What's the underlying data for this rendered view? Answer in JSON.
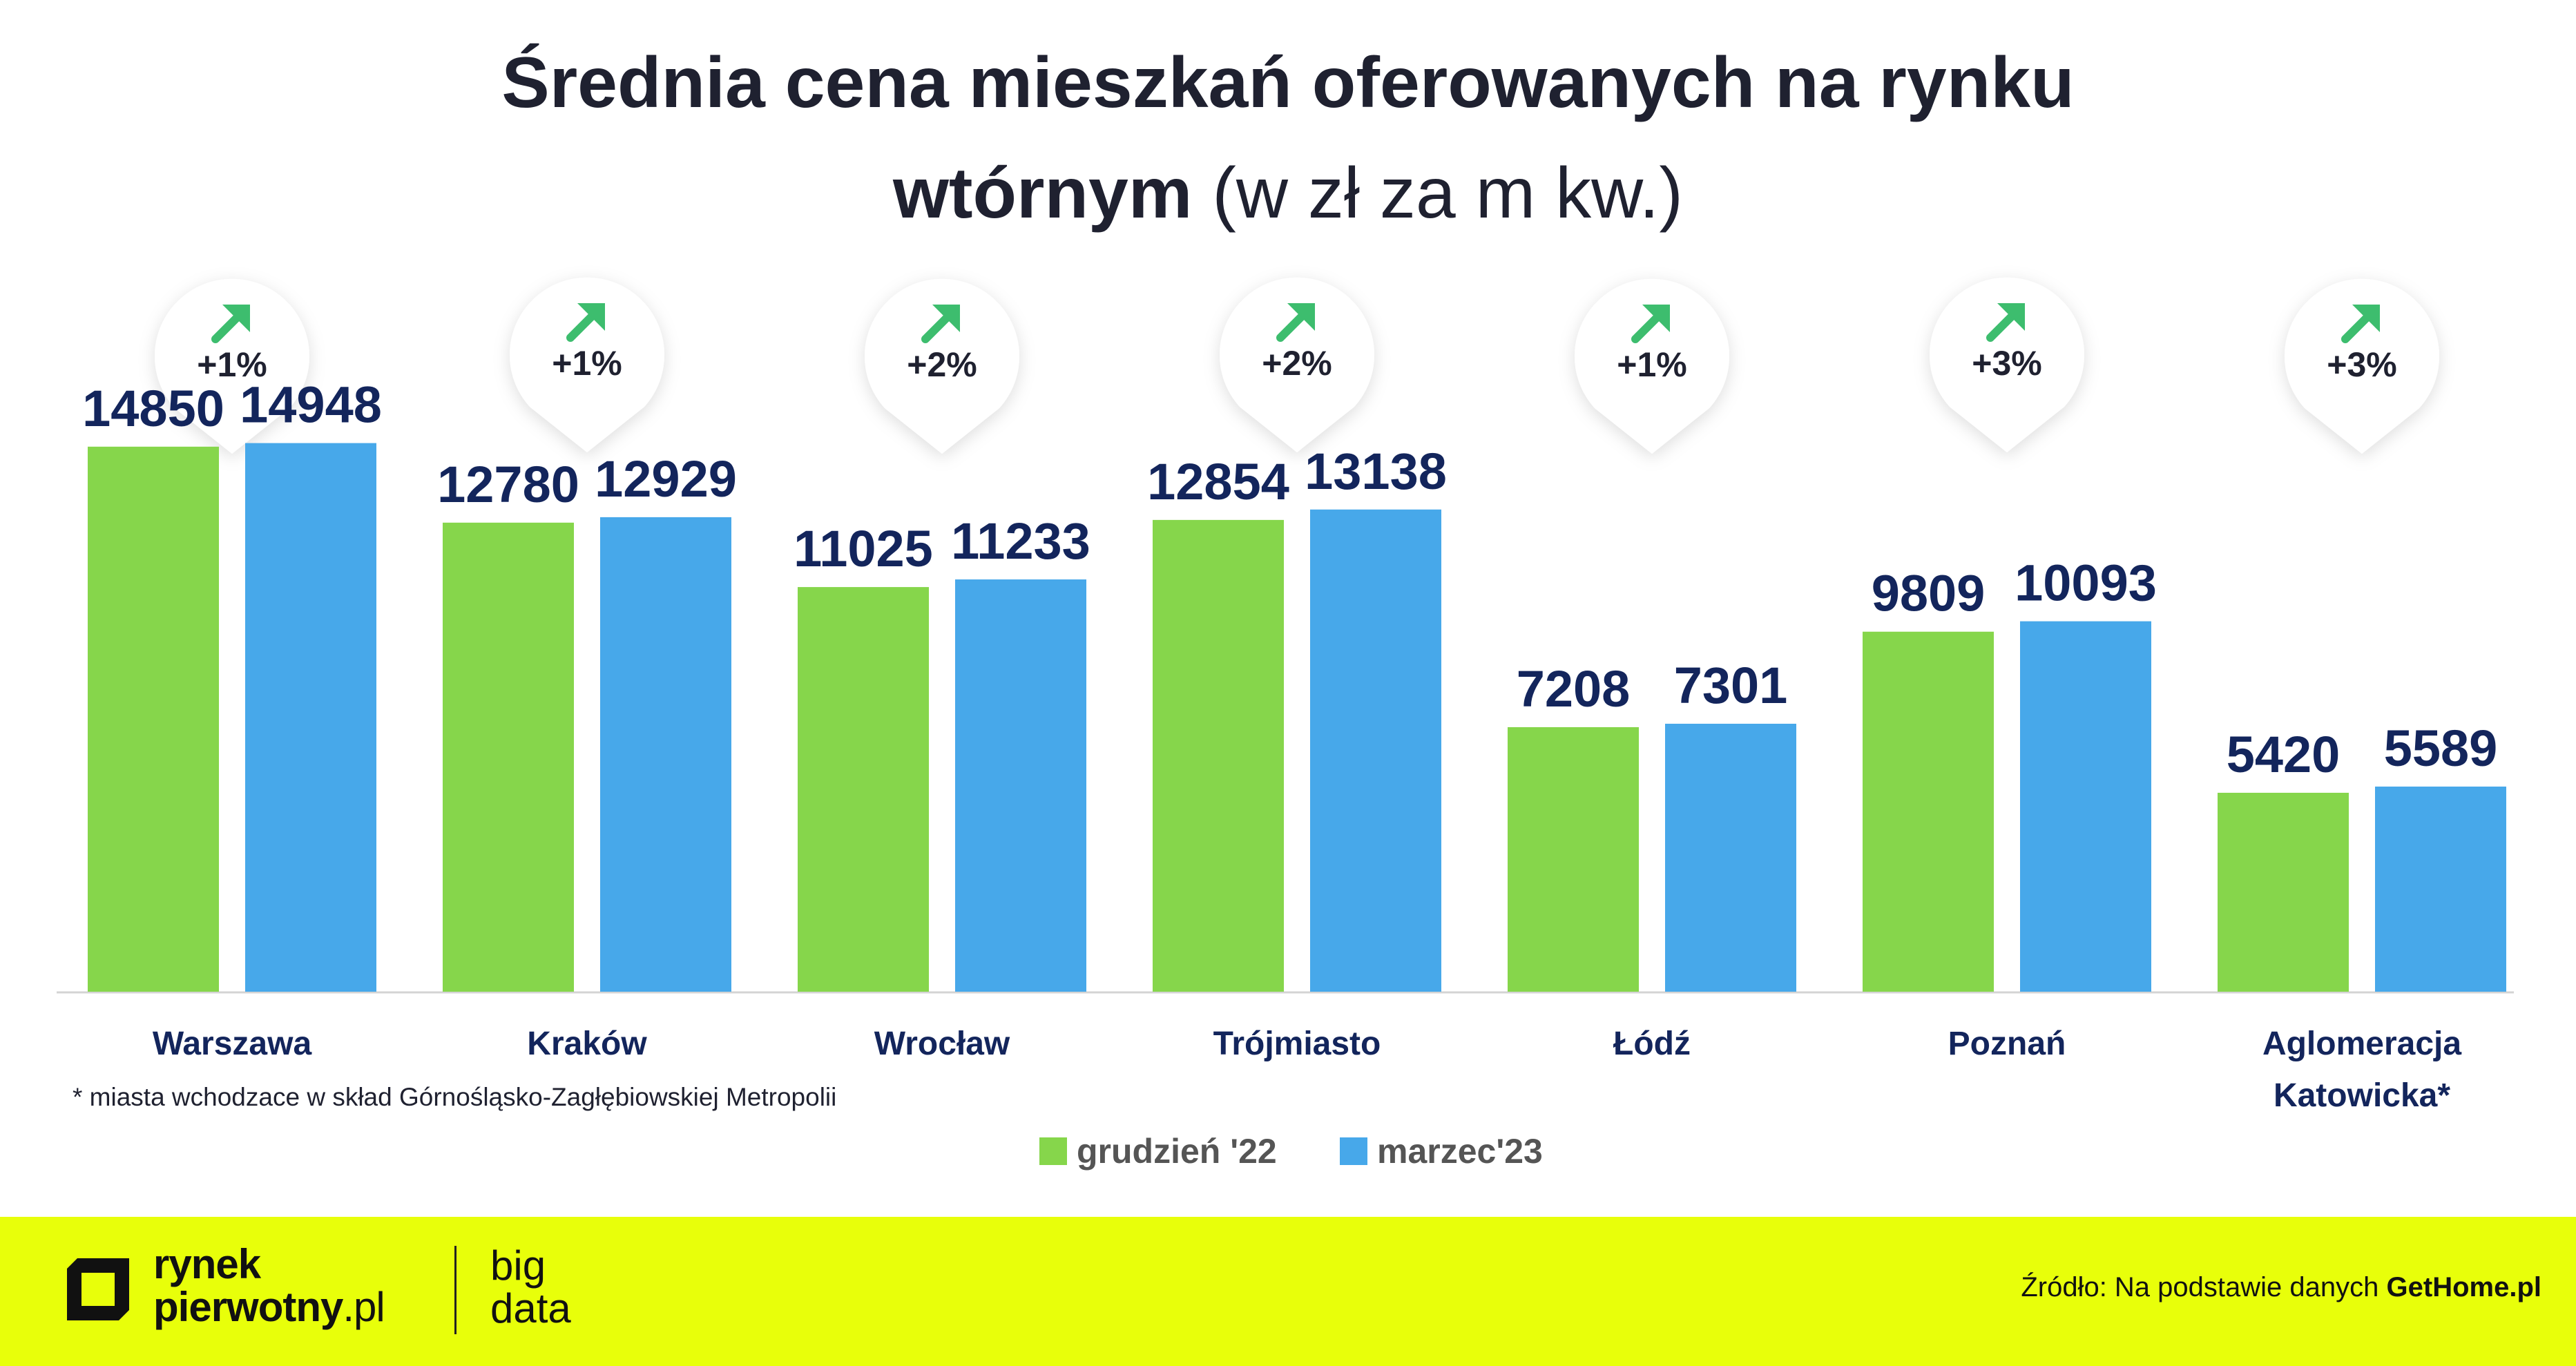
{
  "title": {
    "line1": "Średnia cena mieszkań oferowanych na rynku",
    "line2_bold": "wtórnym",
    "line2_rest": "(w zł za m kw.)"
  },
  "chart_data": {
    "type": "bar",
    "categories": [
      "Warszawa",
      "Kraków",
      "Wrocław",
      "Trójmiasto",
      "Łódź",
      "Poznań",
      "Aglomeracja Katowicka*"
    ],
    "series": [
      {
        "name": "grudzień '22",
        "values": [
          14850,
          12780,
          11025,
          12854,
          7208,
          9809,
          5420
        ],
        "color": "#86d64b"
      },
      {
        "name": "marzec'23",
        "values": [
          14948,
          12929,
          11233,
          13138,
          7301,
          10093,
          5589
        ],
        "color": "#47a8ea"
      }
    ],
    "changes": [
      "+1%",
      "+1%",
      "+2%",
      "+2%",
      "+1%",
      "+3%",
      "+3%"
    ],
    "ylim": [
      0,
      15900
    ],
    "grid": false,
    "legend_position": "bottom-center"
  },
  "colors": {
    "title": "#1f2130",
    "value_label": "#13255c",
    "category_label": "#13255c",
    "arrow": "#3dbd6e",
    "footer_bg": "#e8ff0a"
  },
  "note": "* miasta wchodzace w skład Górnośląsko-Zagłębiowskiej Metropolii",
  "footer": {
    "logo_line1": "rynek",
    "logo_line2": "pierwotny",
    "logo_line2_suffix": ".pl",
    "logo_right_line1": "big",
    "logo_right_line2": "data",
    "source_prefix": "Źródło: Na podstawie danych",
    "source_name": "GetHome.pl"
  }
}
